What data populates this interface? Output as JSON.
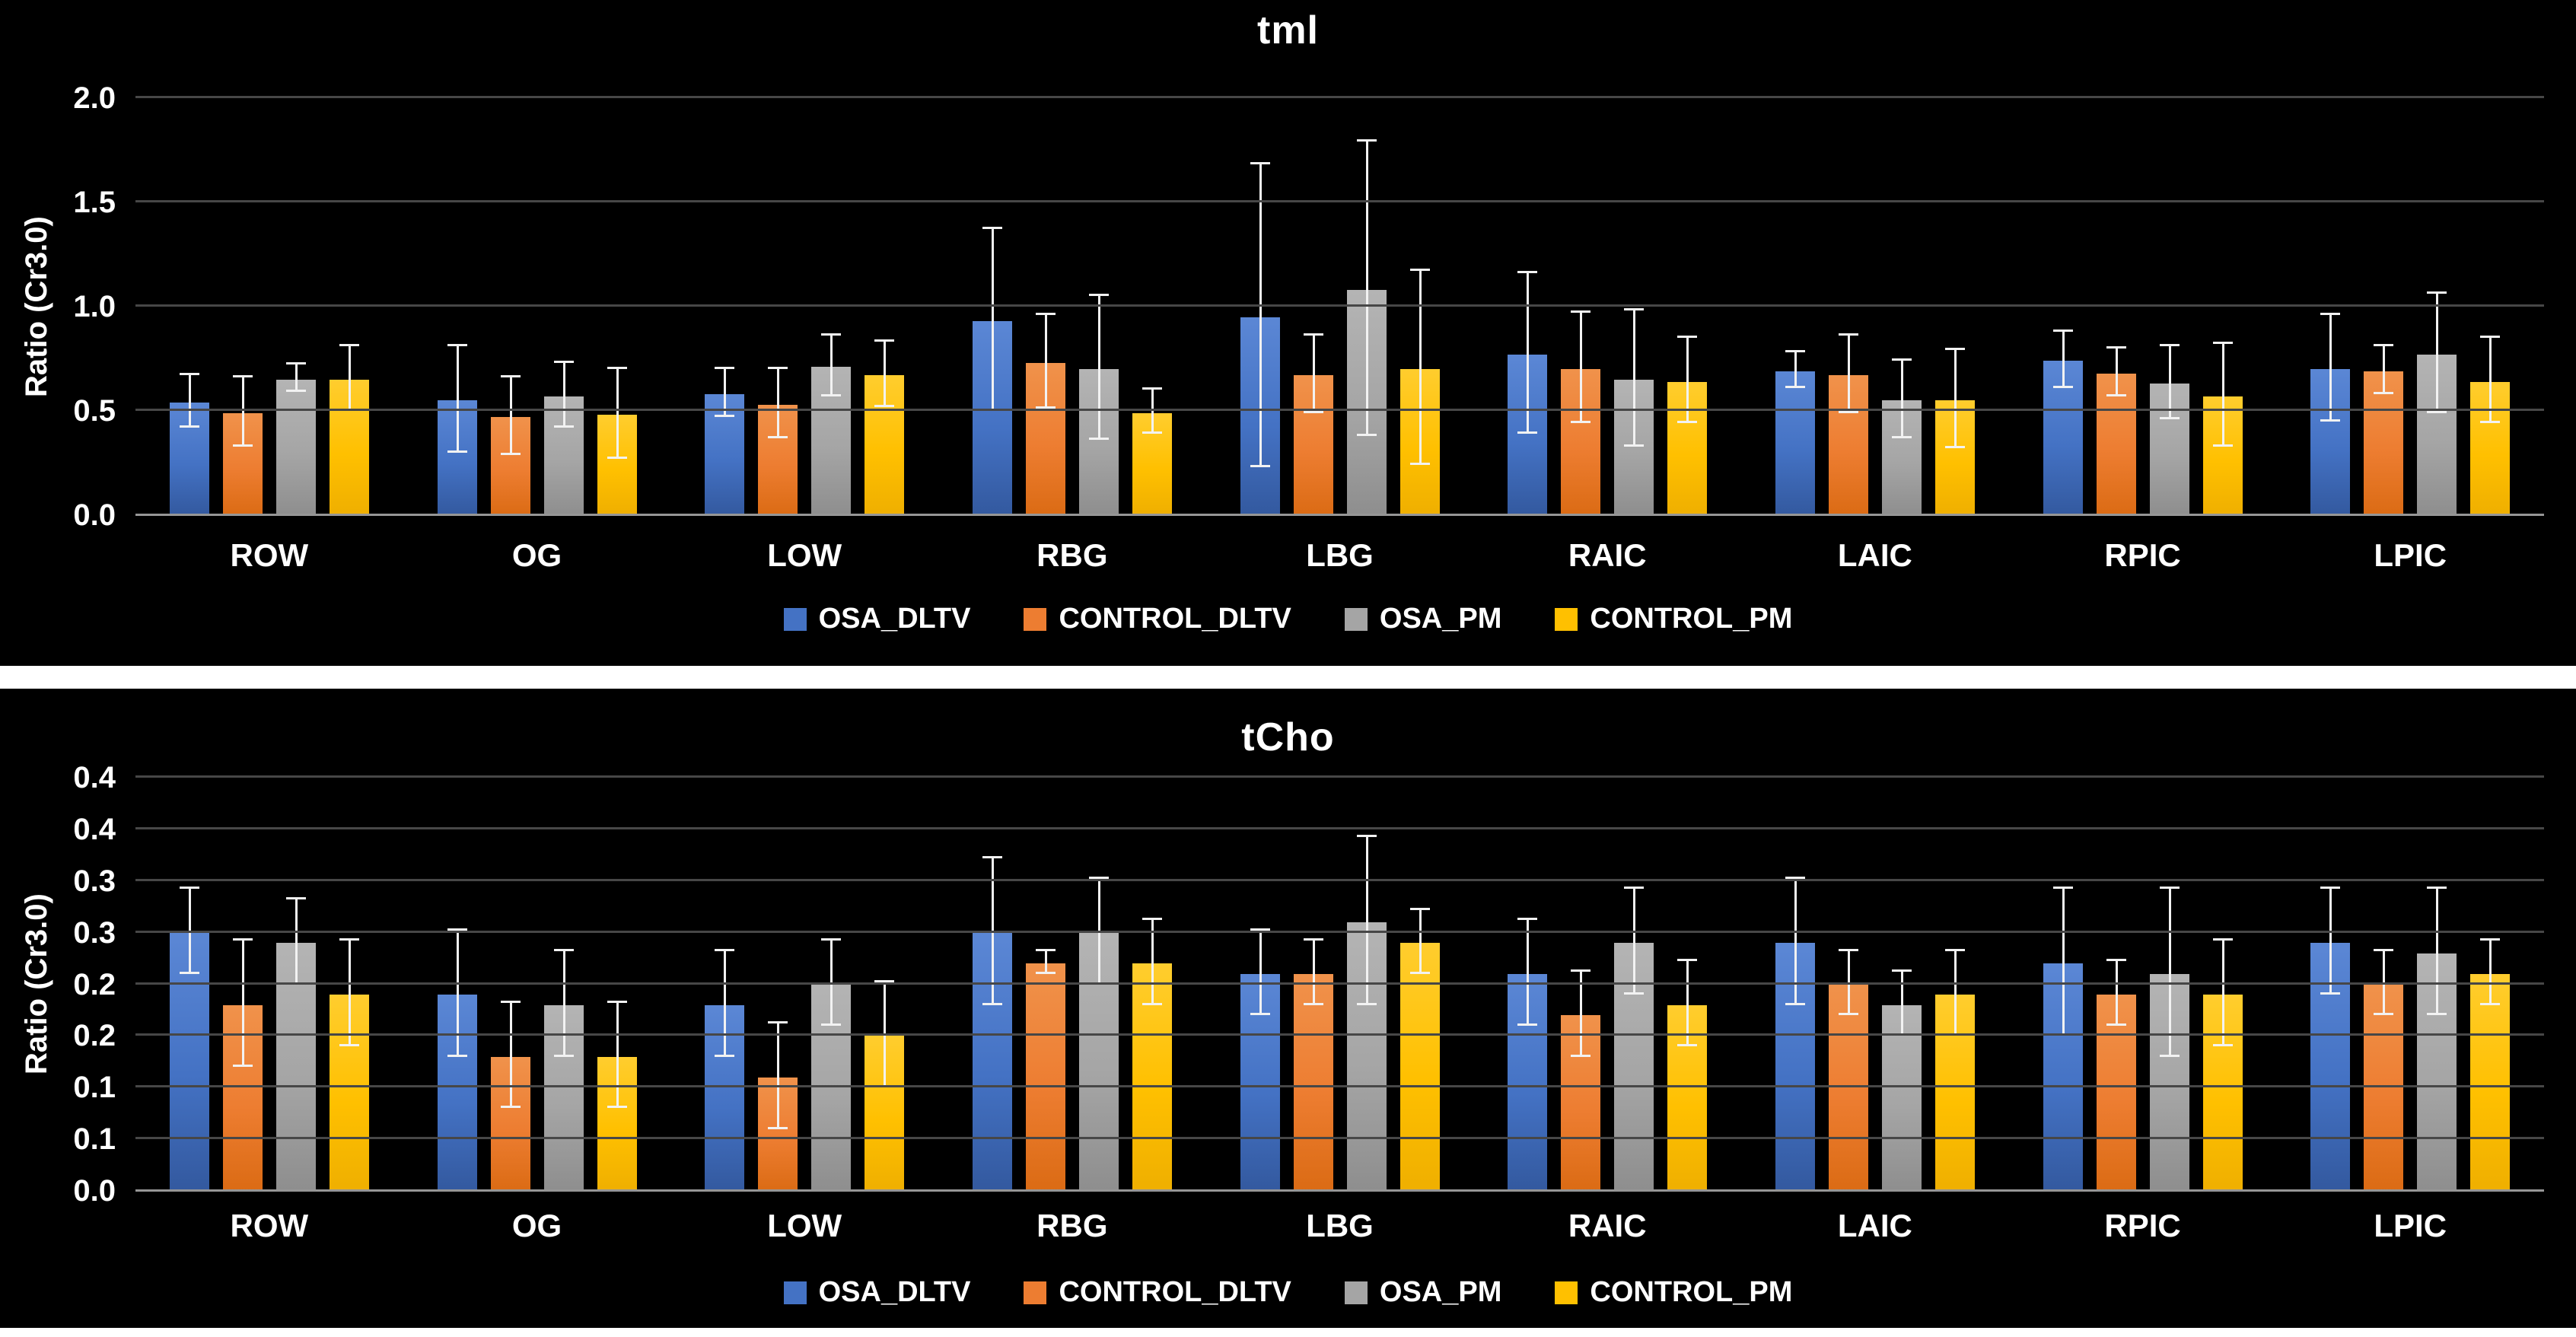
{
  "page": {
    "background_color": "#000000",
    "divider_color": "#ffffff",
    "text_color": "#ffffff",
    "gridline_color": "#474747",
    "axis_line_color": "#969696",
    "error_bar_color": "#f2f2f2"
  },
  "chart_data": [
    {
      "type": "bar",
      "id": "tml",
      "title": "tml",
      "y_axis_label": "Ratio (Cr3.0)",
      "ylim": [
        0,
        2.0
      ],
      "y_tick_step": 0.5,
      "y_tick_labels": [
        "0.0",
        "0.5",
        "1.0",
        "1.5",
        "2.0"
      ],
      "grid": true,
      "legend_position": "bottom",
      "error_bars": true,
      "categories": [
        "ROW",
        "OG",
        "LOW",
        "RBG",
        "LBG",
        "RAIC",
        "LAIC",
        "RPIC",
        "LPIC"
      ],
      "series": [
        {
          "name": "OSA_DLTV",
          "color": "#4472C4",
          "color_top": "#5B87D5",
          "color_bottom": "#33599F",
          "values": [
            0.54,
            0.55,
            0.58,
            0.93,
            0.95,
            0.77,
            0.69,
            0.74,
            0.7
          ],
          "errors": [
            0.12,
            0.25,
            0.11,
            0.43,
            0.72,
            0.38,
            0.08,
            0.13,
            0.25
          ]
        },
        {
          "name": "CONTROL_DLTV",
          "color": "#ED7D31",
          "color_top": "#F0924B",
          "color_bottom": "#DB6B14",
          "values": [
            0.49,
            0.47,
            0.53,
            0.73,
            0.67,
            0.7,
            0.67,
            0.68,
            0.69
          ],
          "errors": [
            0.16,
            0.18,
            0.16,
            0.22,
            0.18,
            0.26,
            0.18,
            0.11,
            0.11
          ]
        },
        {
          "name": "OSA_PM",
          "color": "#A5A5A5",
          "color_top": "#B4B4B4",
          "color_bottom": "#8E8E8E",
          "values": [
            0.65,
            0.57,
            0.71,
            0.7,
            1.08,
            0.65,
            0.55,
            0.63,
            0.77
          ],
          "errors": [
            0.06,
            0.15,
            0.14,
            0.34,
            0.7,
            0.32,
            0.18,
            0.17,
            0.28
          ]
        },
        {
          "name": "CONTROL_PM",
          "color": "#FFC000",
          "color_top": "#FFCD2E",
          "color_bottom": "#EFAF00",
          "values": [
            0.65,
            0.48,
            0.67,
            0.49,
            0.7,
            0.64,
            0.55,
            0.57,
            0.64
          ],
          "errors": [
            0.15,
            0.21,
            0.15,
            0.1,
            0.46,
            0.2,
            0.23,
            0.24,
            0.2
          ]
        }
      ]
    },
    {
      "type": "bar",
      "id": "tCho",
      "title": "tCho",
      "y_axis_label": "Ratio (Cr3.0)",
      "ylim": [
        0,
        0.4
      ],
      "y_tick_step": 0.05,
      "y_tick_labels": [
        "0.0",
        "0.1",
        "0.1",
        "0.2",
        "0.2",
        "0.3",
        "0.3",
        "0.4",
        "0.4"
      ],
      "grid": true,
      "legend_position": "bottom",
      "error_bars": true,
      "categories": [
        "ROW",
        "OG",
        "LOW",
        "RBG",
        "LBG",
        "RAIC",
        "LAIC",
        "RPIC",
        "LPIC"
      ],
      "series": [
        {
          "name": "OSA_DLTV",
          "color": "#4472C4",
          "color_top": "#5B87D5",
          "color_bottom": "#33599F",
          "values": [
            0.25,
            0.19,
            0.18,
            0.25,
            0.21,
            0.21,
            0.24,
            0.22,
            0.24
          ],
          "errors": [
            0.04,
            0.06,
            0.05,
            0.07,
            0.04,
            0.05,
            0.06,
            0.07,
            0.05
          ]
        },
        {
          "name": "CONTROL_DLTV",
          "color": "#ED7D31",
          "color_top": "#F0924B",
          "color_bottom": "#DB6B14",
          "values": [
            0.18,
            0.13,
            0.11,
            0.22,
            0.21,
            0.17,
            0.2,
            0.19,
            0.2
          ],
          "errors": [
            0.06,
            0.05,
            0.05,
            0.01,
            0.03,
            0.04,
            0.03,
            0.03,
            0.03
          ]
        },
        {
          "name": "OSA_PM",
          "color": "#A5A5A5",
          "color_top": "#B4B4B4",
          "color_bottom": "#8E8E8E",
          "values": [
            0.24,
            0.18,
            0.2,
            0.25,
            0.26,
            0.24,
            0.18,
            0.21,
            0.23
          ],
          "errors": [
            0.04,
            0.05,
            0.04,
            0.05,
            0.08,
            0.05,
            0.03,
            0.08,
            0.06
          ]
        },
        {
          "name": "CONTROL_PM",
          "color": "#FFC000",
          "color_top": "#FFCD2E",
          "color_bottom": "#EFAF00",
          "values": [
            0.19,
            0.13,
            0.15,
            0.22,
            0.24,
            0.18,
            0.19,
            0.19,
            0.21
          ],
          "errors": [
            0.05,
            0.05,
            0.05,
            0.04,
            0.03,
            0.04,
            0.04,
            0.05,
            0.03
          ]
        }
      ]
    }
  ]
}
